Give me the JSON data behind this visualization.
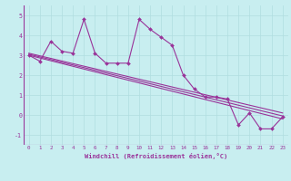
{
  "xlabel": "Windchill (Refroidissement éolien,°C)",
  "background_color": "#c8eef0",
  "line_color": "#993399",
  "grid_color": "#b0dde0",
  "xlim": [
    -0.5,
    23.5
  ],
  "ylim": [
    -1.5,
    5.5
  ],
  "yticks": [
    -1,
    0,
    1,
    2,
    3,
    4,
    5
  ],
  "xticks": [
    0,
    1,
    2,
    3,
    4,
    5,
    6,
    7,
    8,
    9,
    10,
    11,
    12,
    13,
    14,
    15,
    16,
    17,
    18,
    19,
    20,
    21,
    22,
    23
  ],
  "main_x": [
    0,
    1,
    2,
    3,
    4,
    5,
    6,
    7,
    8,
    9,
    10,
    11,
    12,
    13,
    14,
    15,
    16,
    17,
    18,
    19,
    20,
    21,
    22,
    23
  ],
  "main_y": [
    3.0,
    2.7,
    3.7,
    3.2,
    3.1,
    4.8,
    3.1,
    2.6,
    2.6,
    2.6,
    4.8,
    4.3,
    3.9,
    3.5,
    2.0,
    1.3,
    0.9,
    0.9,
    0.8,
    -0.5,
    0.1,
    -0.7,
    -0.7,
    -0.1
  ],
  "regression_lines": [
    {
      "x": [
        0,
        23
      ],
      "y": [
        3.05,
        -0.05
      ]
    },
    {
      "x": [
        0,
        23
      ],
      "y": [
        3.0,
        -0.2
      ]
    },
    {
      "x": [
        0,
        23
      ],
      "y": [
        3.1,
        0.1
      ]
    }
  ]
}
